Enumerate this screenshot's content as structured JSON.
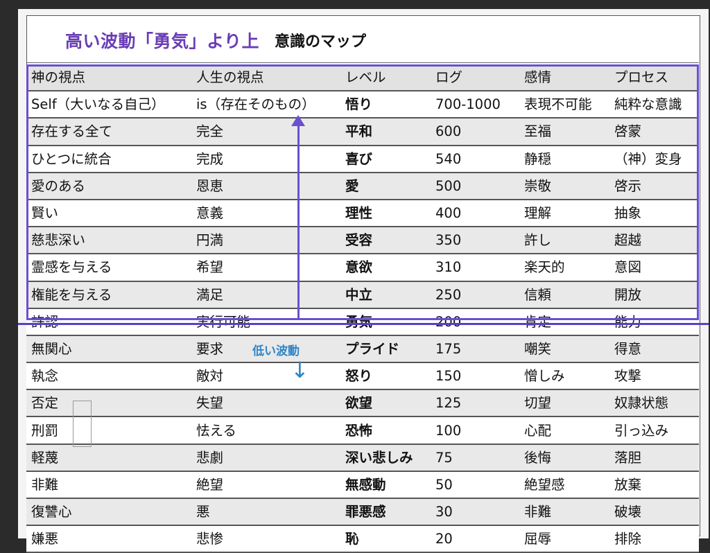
{
  "title": {
    "main": "高い波動「勇気」より上",
    "sub": "意識のマップ"
  },
  "annotation": {
    "low_label": "低い波動",
    "down_arrow": "↓"
  },
  "colors": {
    "accent_purple": "#6a4fd0",
    "low_blue": "#2f86c9"
  },
  "table": {
    "headers": [
      "神の視点",
      "人生の視点",
      "レベル",
      "ログ",
      "感情",
      "プロセス"
    ],
    "rows": [
      [
        "Self（大いなる自己）",
        "is（存在そのもの）",
        "悟り",
        "700-1000",
        "表現不可能",
        "純粋な意識"
      ],
      [
        "存在する全て",
        "完全",
        "平和",
        "600",
        "至福",
        "啓蒙"
      ],
      [
        "ひとつに統合",
        "完成",
        "喜び",
        "540",
        "静穏",
        "（神）変身"
      ],
      [
        "愛のある",
        "恩恵",
        "愛",
        "500",
        "崇敬",
        "啓示"
      ],
      [
        "賢い",
        "意義",
        "理性",
        "400",
        "理解",
        "抽象"
      ],
      [
        "慈悲深い",
        "円満",
        "受容",
        "350",
        "許し",
        "超越"
      ],
      [
        "霊感を与える",
        "希望",
        "意欲",
        "310",
        "楽天的",
        "意図"
      ],
      [
        "権能を与える",
        "満足",
        "中立",
        "250",
        "信頼",
        "開放"
      ],
      [
        "許認",
        "実行可能",
        "勇気",
        "200",
        "肯定",
        "能力"
      ],
      [
        "無関心",
        "要求",
        "プライド",
        "175",
        "嘲笑",
        "得意"
      ],
      [
        "執念",
        "敵対",
        "怒り",
        "150",
        "憎しみ",
        "攻撃"
      ],
      [
        "否定",
        "失望",
        "欲望",
        "125",
        "切望",
        "奴隷状態"
      ],
      [
        "刑罰",
        "怯える",
        "恐怖",
        "100",
        "心配",
        "引っ込み"
      ],
      [
        "軽蔑",
        "悲劇",
        "深い悲しみ",
        "75",
        "後悔",
        "落胆"
      ],
      [
        "非難",
        "絶望",
        "無感動",
        "50",
        "絶望感",
        "放棄"
      ],
      [
        "復讐心",
        "悪",
        "罪悪感",
        "30",
        "非難",
        "破壊"
      ],
      [
        "嫌悪",
        "悲惨",
        "恥",
        "20",
        "屈辱",
        "排除"
      ]
    ]
  }
}
